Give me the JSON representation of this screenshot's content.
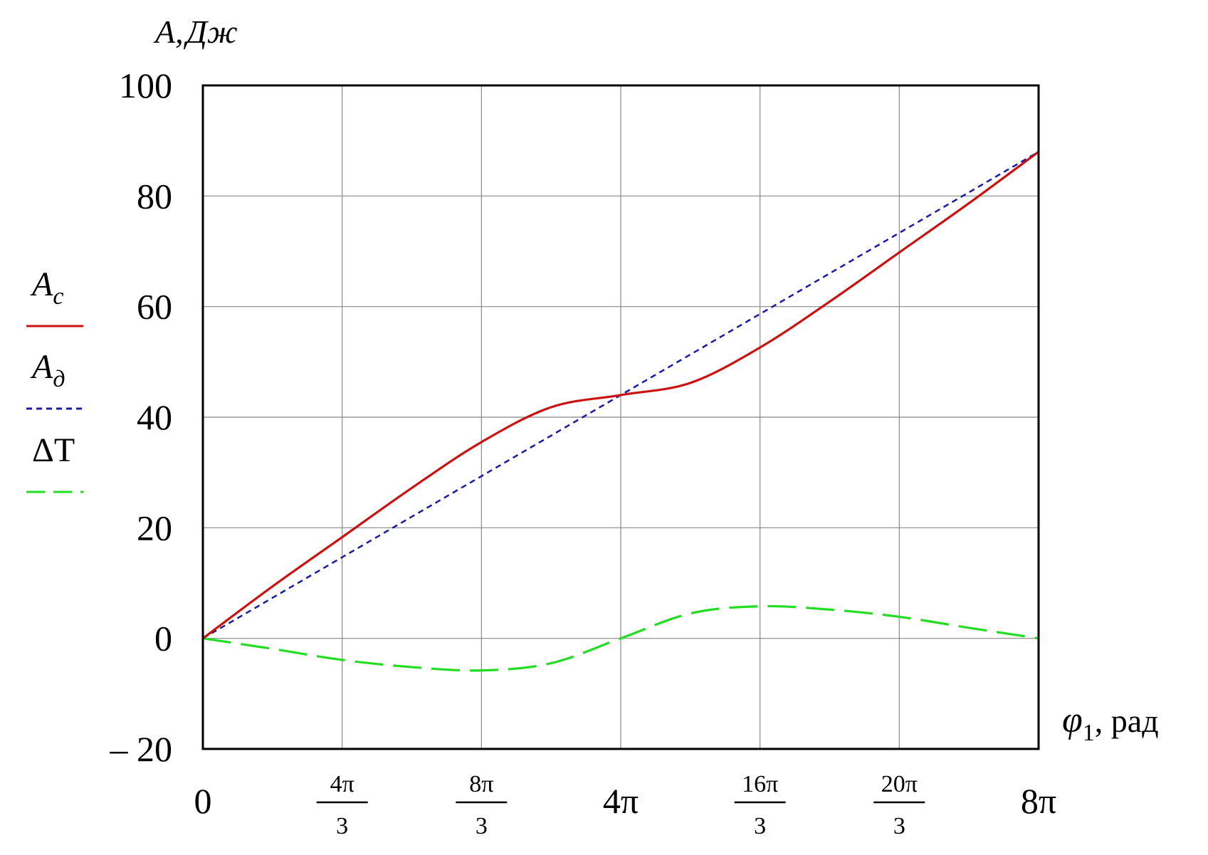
{
  "chart_data": {
    "type": "line",
    "ylabel": "A,",
    "ylabel_unit": "Дж",
    "xlabel_symbol": "φ",
    "xlabel_sub": "1",
    "xlabel_unit": ", рад",
    "xlim": [
      0,
      25.1327
    ],
    "ylim": [
      -20,
      100
    ],
    "grid": true,
    "legend_position": "left",
    "y_ticks": [
      "100",
      "80",
      "60",
      "40",
      "20",
      "0",
      "– 20"
    ],
    "y_tick_values": [
      100,
      80,
      60,
      40,
      20,
      0,
      -20
    ],
    "x_ticks": [
      {
        "value": 0,
        "num": "0",
        "den": ""
      },
      {
        "value": 4.18879,
        "num": "4π",
        "den": "3"
      },
      {
        "value": 8.37758,
        "num": "8π",
        "den": "3"
      },
      {
        "value": 12.56637,
        "num": "4π",
        "den": ""
      },
      {
        "value": 16.75516,
        "num": "16π",
        "den": "3"
      },
      {
        "value": 20.94395,
        "num": "20π",
        "den": "3"
      },
      {
        "value": 25.13274,
        "num": "8π",
        "den": ""
      }
    ],
    "series": [
      {
        "name": "A",
        "name_sub": "c",
        "color": "#cc1111",
        "dash": "",
        "x": [
          0,
          2.0944,
          4.18879,
          6.28319,
          8.37758,
          10.47198,
          12.56637,
          14.66077,
          16.75516,
          18.84956,
          20.94395,
          23.03835,
          25.13274
        ],
        "y": [
          0,
          9.4,
          18.3,
          27.2,
          35.5,
          41.8,
          44.0,
          46.2,
          52.6,
          60.9,
          69.8,
          78.7,
          88.0
        ]
      },
      {
        "name": "A",
        "name_sub": "д",
        "color": "#1a1aa6",
        "dash": "8,6",
        "x": [
          0,
          25.13274
        ],
        "y": [
          0,
          88.0
        ]
      },
      {
        "name": "ΔT",
        "name_sub": "",
        "color": "#22dd22",
        "dash": "40,14",
        "x": [
          0,
          2.0944,
          4.18879,
          6.28319,
          8.37758,
          10.47198,
          12.56637,
          14.66077,
          16.75516,
          18.84956,
          20.94395,
          23.03835,
          25.13274
        ],
        "y": [
          0,
          -1.9,
          -3.9,
          -5.2,
          -5.8,
          -4.5,
          0,
          4.5,
          5.8,
          5.2,
          3.9,
          1.9,
          0
        ]
      }
    ]
  }
}
